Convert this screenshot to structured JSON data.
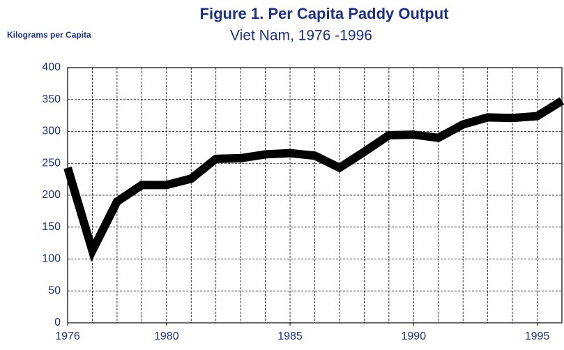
{
  "chart_data": {
    "type": "line",
    "title": "Figure 1.  Per Capita Paddy Output",
    "subtitle": "Viet Nam, 1976 -1996",
    "y_label": "Kilograms per Capita",
    "x": [
      1976,
      1977,
      1978,
      1979,
      1980,
      1981,
      1982,
      1983,
      1984,
      1985,
      1986,
      1987,
      1988,
      1989,
      1990,
      1991,
      1992,
      1993,
      1994,
      1995,
      1996
    ],
    "series": [
      {
        "name": "Per Capita Paddy Output",
        "color": "#000000",
        "values": [
          243,
          113,
          190,
          216,
          216,
          226,
          257,
          258,
          264,
          266,
          262,
          243,
          268,
          294,
          295,
          290,
          311,
          322,
          321,
          324,
          348
        ]
      }
    ],
    "xlim": [
      1976,
      1996
    ],
    "xticks": [
      1976,
      1980,
      1985,
      1990,
      1995
    ],
    "x_grid_interval": 1,
    "ylim": [
      0,
      400
    ],
    "yticks": [
      0,
      50,
      100,
      150,
      200,
      250,
      300,
      350,
      400
    ],
    "grid": true
  }
}
